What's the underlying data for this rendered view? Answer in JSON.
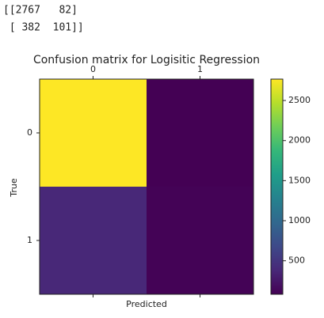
{
  "console_output": [
    "[[2767   82]",
    " [ 382  101]]"
  ],
  "chart_data": {
    "type": "heatmap",
    "title": "Confusion matrix for Logisitic Regression",
    "x_label": "Predicted",
    "y_label": "True",
    "x_categories": [
      "0",
      "1"
    ],
    "y_categories": [
      "0",
      "1"
    ],
    "values": [
      [
        2767,
        82
      ],
      [
        382,
        101
      ]
    ],
    "colormap": "viridis",
    "clim": [
      82,
      2767
    ],
    "colorbar_ticks": [
      500,
      1000,
      1500,
      2000,
      2500
    ]
  }
}
